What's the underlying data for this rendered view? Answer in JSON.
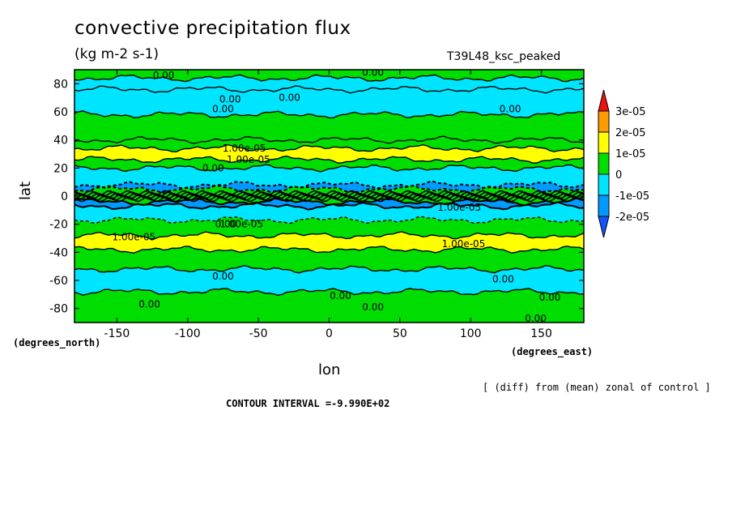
{
  "chart_data": {
    "type": "heatmap",
    "title": "convective precipitation flux",
    "units": "(kg m-2 s-1)",
    "run_label": "T39L48_ksc_peaked",
    "xlabel": "lon",
    "ylabel": "lat",
    "x_unit_label": "(degrees_east)",
    "y_unit_label": "(degrees_north)",
    "xlim": [
      -180,
      180
    ],
    "ylim": [
      -90,
      90
    ],
    "x_ticks": [
      "-150",
      "-100",
      "-50",
      "0",
      "50",
      "100",
      "150"
    ],
    "x_tick_values": [
      -150,
      -100,
      -50,
      0,
      50,
      100,
      150
    ],
    "y_ticks": [
      "80",
      "60",
      "40",
      "20",
      "0",
      "-20",
      "-40",
      "-60",
      "-80"
    ],
    "y_tick_values": [
      80,
      60,
      40,
      20,
      0,
      -20,
      -40,
      -60,
      -80
    ],
    "colorbar": {
      "labels": [
        "3e-05",
        "2e-05",
        "1e-05",
        "0",
        "-1e-05",
        "-2e-05"
      ],
      "bins": [
        {
          "color": "#ee1111"
        },
        {
          "color": "#ff9a00"
        },
        {
          "color": "#ffff00"
        },
        {
          "color": "#00dd00"
        },
        {
          "color": "#00e5ff"
        },
        {
          "color": "#0099ff"
        },
        {
          "color": "#1155ff"
        }
      ]
    },
    "zonal_bands": [
      {
        "lat_from": 90,
        "lat_to": 84,
        "level": 0
      },
      {
        "lat_from": 84,
        "lat_to": 76,
        "level": -1
      },
      {
        "lat_from": 76,
        "lat_to": 58,
        "level": -1
      },
      {
        "lat_from": 58,
        "lat_to": 40,
        "level": 0
      },
      {
        "lat_from": 40,
        "lat_to": 34,
        "level": 0
      },
      {
        "lat_from": 34,
        "lat_to": 26,
        "level": 1
      },
      {
        "lat_from": 26,
        "lat_to": 20,
        "level": 0
      },
      {
        "lat_from": 20,
        "lat_to": 8,
        "level": -1
      },
      {
        "lat_from": 8,
        "lat_to": 5,
        "level": -2
      },
      {
        "lat_from": 5,
        "lat_to": -4,
        "level": 0
      },
      {
        "lat_from": -4,
        "lat_to": -7,
        "level": -2
      },
      {
        "lat_from": -7,
        "lat_to": -17,
        "level": -1
      },
      {
        "lat_from": -17,
        "lat_to": -28,
        "level": 0
      },
      {
        "lat_from": -28,
        "lat_to": -38,
        "level": 1
      },
      {
        "lat_from": -38,
        "lat_to": -52,
        "level": 0
      },
      {
        "lat_from": -52,
        "lat_to": -68,
        "level": -1
      },
      {
        "lat_from": -68,
        "lat_to": -90,
        "level": 0
      }
    ],
    "contour_labels": [
      {
        "text": "0.00",
        "lon": -117,
        "lat": 86
      },
      {
        "text": "0.00",
        "lon": 31,
        "lat": 88
      },
      {
        "text": "0.00",
        "lon": -70,
        "lat": 69
      },
      {
        "text": "0.00",
        "lon": -28,
        "lat": 70
      },
      {
        "text": "0.00",
        "lon": -75,
        "lat": 62
      },
      {
        "text": "0.00",
        "lon": 128,
        "lat": 62
      },
      {
        "text": "1.00e-05",
        "lon": -60,
        "lat": 34
      },
      {
        "text": "1.00e-05",
        "lon": -57,
        "lat": 26
      },
      {
        "text": "0.00",
        "lon": -82,
        "lat": 20
      },
      {
        "text": "1.00e-05",
        "lon": -62,
        "lat": -20
      },
      {
        "text": "1.00e-05",
        "lon": 92,
        "lat": -8
      },
      {
        "text": "0.00",
        "lon": -73,
        "lat": -20
      },
      {
        "text": "1.00e-05",
        "lon": -138,
        "lat": -29
      },
      {
        "text": "1.00e-05",
        "lon": 95,
        "lat": -34
      },
      {
        "text": "0.00",
        "lon": -75,
        "lat": -57
      },
      {
        "text": "0.00",
        "lon": 123,
        "lat": -59
      },
      {
        "text": "0.00",
        "lon": 8,
        "lat": -71
      },
      {
        "text": "0.00",
        "lon": 31,
        "lat": -79
      },
      {
        "text": "0.00",
        "lon": 156,
        "lat": -72
      },
      {
        "text": "0.00",
        "lon": -127,
        "lat": -77
      },
      {
        "text": "0.00",
        "lon": 146,
        "lat": -87
      }
    ]
  },
  "annotations": {
    "diff_note": "[ (diff) from (mean) zonal of control ]",
    "contour_interval": "CONTOUR INTERVAL =-9.990E+02"
  }
}
